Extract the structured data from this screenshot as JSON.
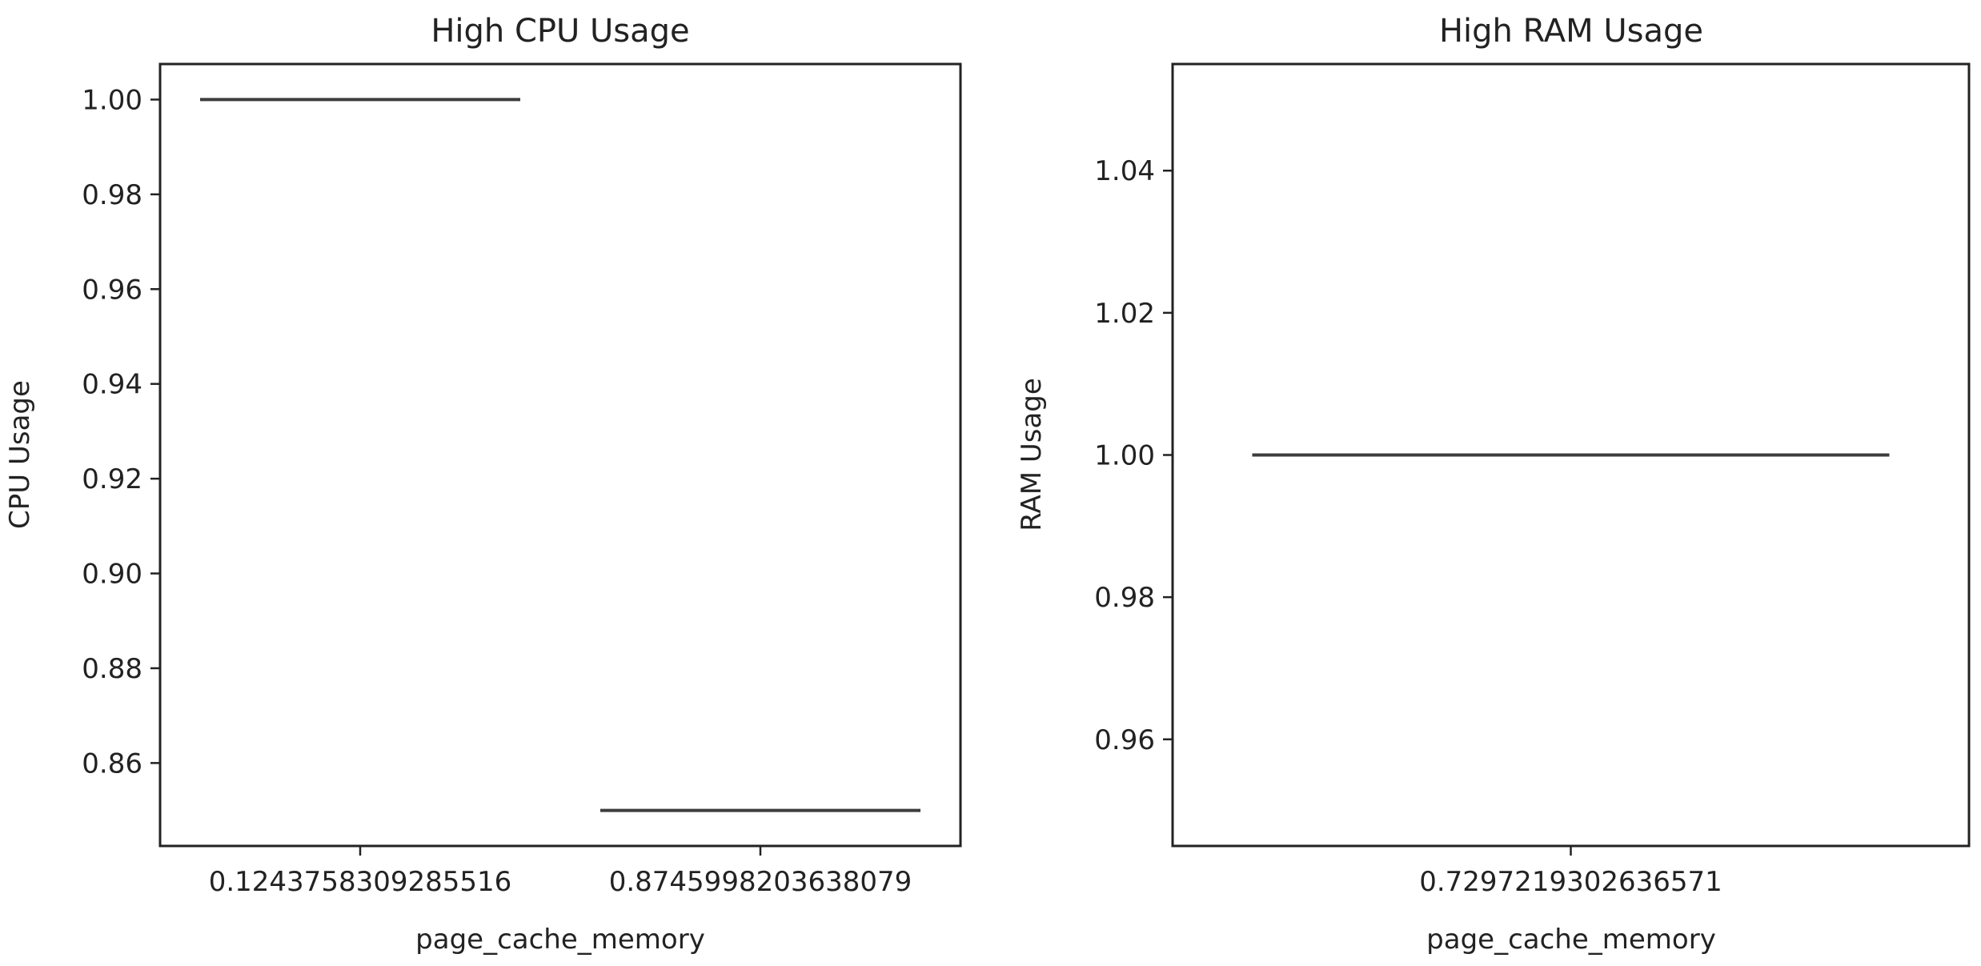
{
  "chart_data": [
    {
      "type": "box",
      "title": "High CPU Usage",
      "xlabel": "page_cache_memory",
      "ylabel": "CPU Usage",
      "categories": [
        "0.1243758309285516",
        "0.8745998203638079"
      ],
      "values": [
        1.0,
        0.85
      ],
      "ylim": [
        0.8425,
        1.0075
      ],
      "yticks": [
        0.86,
        0.88,
        0.9,
        0.92,
        0.94,
        0.96,
        0.98,
        1.0
      ],
      "ytick_labels": [
        "0.86",
        "0.88",
        "0.90",
        "0.92",
        "0.94",
        "0.96",
        "0.98",
        "1.00"
      ],
      "grid": false,
      "color": "#3d3d3d"
    },
    {
      "type": "box",
      "title": "High RAM Usage",
      "xlabel": "page_cache_memory",
      "ylabel": "RAM Usage",
      "categories": [
        "0.7297219302636571"
      ],
      "values": [
        1.0
      ],
      "ylim": [
        0.945,
        1.055
      ],
      "yticks": [
        0.96,
        0.98,
        1.0,
        1.02,
        1.04
      ],
      "ytick_labels": [
        "0.96",
        "0.98",
        "1.00",
        "1.02",
        "1.04"
      ],
      "grid": false,
      "color": "#3d3d3d"
    }
  ]
}
